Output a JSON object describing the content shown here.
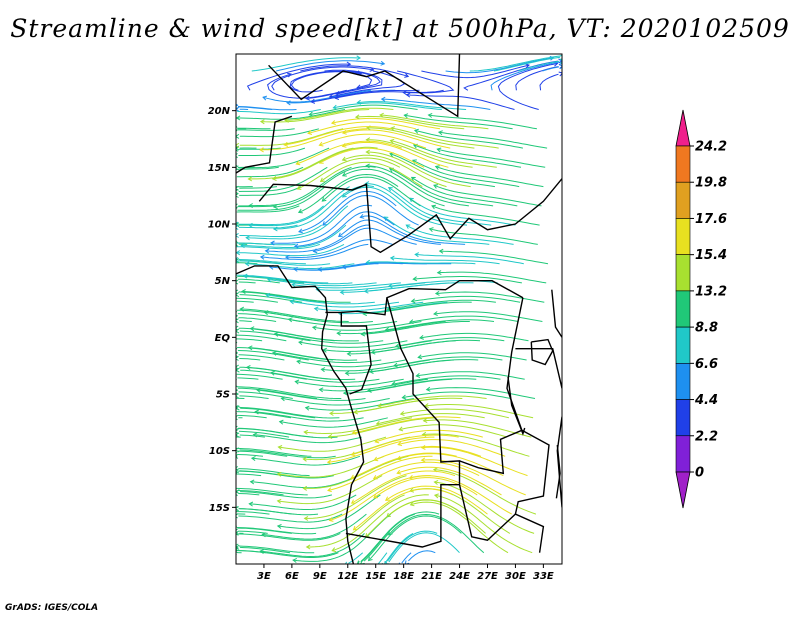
{
  "title": "Streamline & wind speed[kt] at 500hPa, VT: 2020102509",
  "footer": "GrADS: IGES/COLA",
  "map": {
    "lon_range": [
      0,
      35
    ],
    "lat_range": [
      -20,
      25
    ],
    "lat_ticks": [
      {
        "value": 20,
        "label": "20N"
      },
      {
        "value": 15,
        "label": "15N"
      },
      {
        "value": 10,
        "label": "10N"
      },
      {
        "value": 5,
        "label": "5N"
      },
      {
        "value": 0,
        "label": "EQ"
      },
      {
        "value": -5,
        "label": "5S"
      },
      {
        "value": -10,
        "label": "10S"
      },
      {
        "value": -15,
        "label": "15S"
      }
    ],
    "lon_ticks": [
      {
        "value": 3,
        "label": "3E"
      },
      {
        "value": 6,
        "label": "6E"
      },
      {
        "value": 9,
        "label": "9E"
      },
      {
        "value": 12,
        "label": "12E"
      },
      {
        "value": 15,
        "label": "15E"
      },
      {
        "value": 18,
        "label": "18E"
      },
      {
        "value": 21,
        "label": "21E"
      },
      {
        "value": 24,
        "label": "24E"
      },
      {
        "value": 27,
        "label": "27E"
      },
      {
        "value": 30,
        "label": "30E"
      },
      {
        "value": 33,
        "label": "33E"
      }
    ]
  },
  "colorbar": {
    "levels": [
      "24.2",
      "19.8",
      "17.6",
      "15.4",
      "13.2",
      "8.8",
      "6.6",
      "4.4",
      "2.2",
      "0"
    ],
    "colors_top_to_bottom": [
      "#f0208c",
      "#f07820",
      "#e0a020",
      "#e8e020",
      "#a8e030",
      "#20c878",
      "#20c8c8",
      "#1e90f0",
      "#2040e8",
      "#8020d8",
      "#a020c8"
    ]
  }
}
